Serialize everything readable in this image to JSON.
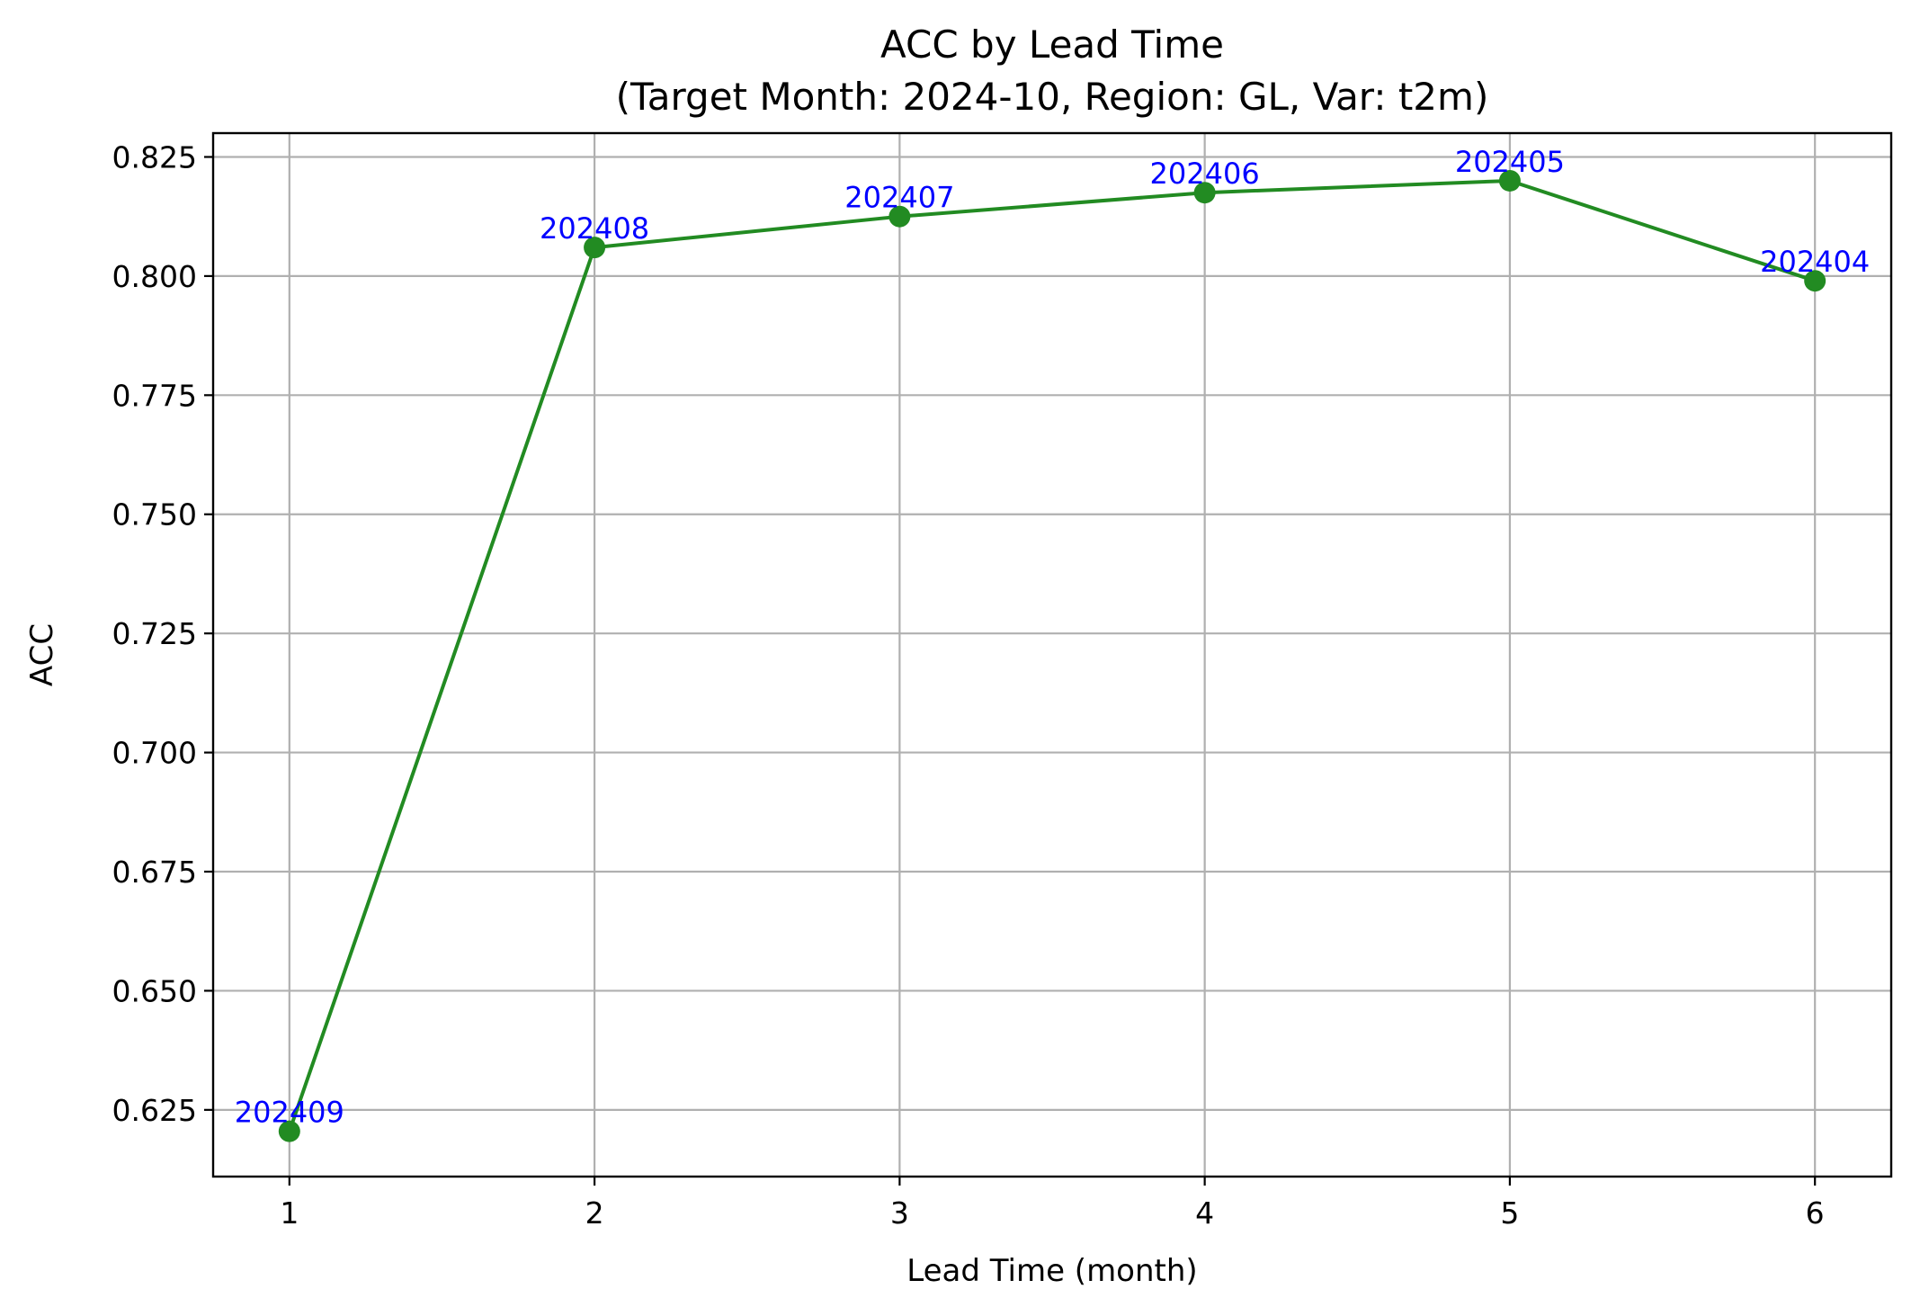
{
  "chart_data": {
    "type": "line",
    "title": "ACC by Lead Time",
    "subtitle": "(Target Month: 2024-10, Region: GL, Var: t2m)",
    "xlabel": "Lead Time (month)",
    "ylabel": "ACC",
    "x": [
      1,
      2,
      3,
      4,
      5,
      6
    ],
    "x_ticks": [
      "1",
      "2",
      "3",
      "4",
      "5",
      "6"
    ],
    "xlim": [
      0.75,
      6.25
    ],
    "ylim": [
      0.611,
      0.83
    ],
    "y_ticks": [
      0.625,
      0.65,
      0.675,
      0.7,
      0.725,
      0.75,
      0.775,
      0.8,
      0.825
    ],
    "y_tick_labels": [
      "0.625",
      "0.650",
      "0.675",
      "0.700",
      "0.725",
      "0.750",
      "0.775",
      "0.800",
      "0.825"
    ],
    "grid": true,
    "series": [
      {
        "values": [
          0.6205,
          0.806,
          0.8125,
          0.8175,
          0.82,
          0.799
        ],
        "point_labels": [
          "202409",
          "202408",
          "202407",
          "202406",
          "202405",
          "202404"
        ],
        "color": "#228b22",
        "marker": "circle"
      }
    ],
    "annotation_color": "#0000ff"
  }
}
